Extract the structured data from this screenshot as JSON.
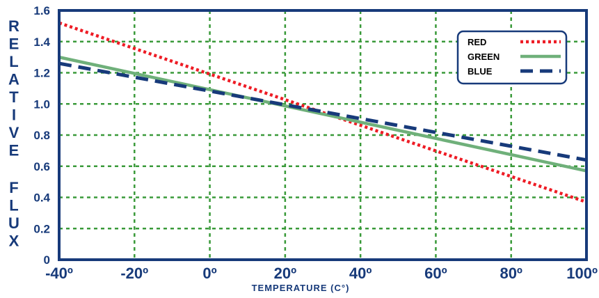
{
  "chart_data": {
    "type": "line",
    "xlabel": "TEMPERATURE (C°)",
    "ylabel": "RELATIVE FLUX",
    "x": [
      -40,
      100
    ],
    "xlim": [
      -40,
      100
    ],
    "ylim": [
      0,
      1.6
    ],
    "x_ticks": [
      "-40º",
      "-20º",
      "0º",
      "20º",
      "40º",
      "60º",
      "80º",
      "100º"
    ],
    "y_ticks": [
      "0",
      "0.2",
      "0.4",
      "0.6",
      "0.8",
      "1.0",
      "1.2",
      "1.4",
      "1.6"
    ],
    "grid": true,
    "legend_position": "top-right",
    "series": [
      {
        "name": "RED",
        "values": [
          1.52,
          0.37
        ],
        "color": "#ee1c25",
        "style": "dotted"
      },
      {
        "name": "GREEN",
        "values": [
          1.3,
          0.57
        ],
        "color": "#6fb07a",
        "style": "solid"
      },
      {
        "name": "BLUE",
        "values": [
          1.26,
          0.64
        ],
        "color": "#173a7a",
        "style": "dashed"
      }
    ],
    "colors": {
      "axis": "#173a7a",
      "grid": "#3a9a3a"
    }
  }
}
